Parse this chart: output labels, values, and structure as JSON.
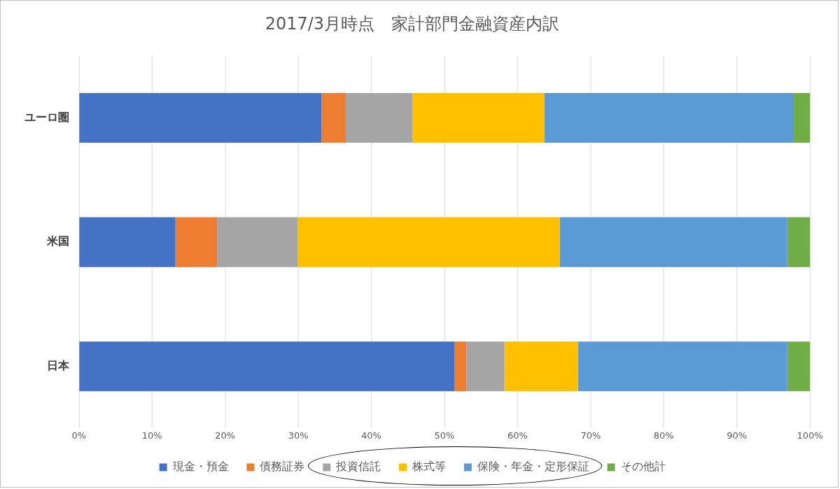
{
  "chart_data": {
    "type": "bar",
    "orientation": "horizontal",
    "stacked": true,
    "title": "2017/3月時点　家計部門金融資産内訳",
    "categories": [
      "ユーロ圏",
      "米国",
      "日本"
    ],
    "series": [
      {
        "name": "現金・預金",
        "color": "#4472c4",
        "values": [
          33.2,
          13.2,
          51.4
        ]
      },
      {
        "name": "債務証券",
        "color": "#ed7d31",
        "values": [
          3.3,
          5.7,
          1.6
        ]
      },
      {
        "name": "投資信託",
        "color": "#a5a5a5",
        "values": [
          9.1,
          11.0,
          5.2
        ]
      },
      {
        "name": "株式等",
        "color": "#ffc000",
        "values": [
          18.1,
          35.9,
          10.1
        ]
      },
      {
        "name": "保険・年金・定形保証",
        "color": "#5b9bd5",
        "values": [
          34.1,
          31.1,
          28.6
        ]
      },
      {
        "name": "その他計",
        "color": "#70ad47",
        "values": [
          2.2,
          3.1,
          3.1
        ]
      }
    ],
    "xlim": [
      0,
      100
    ],
    "xticks": [
      {
        "value": 0,
        "label": "0%"
      },
      {
        "value": 10,
        "label": "10%"
      },
      {
        "value": 20,
        "label": "20%"
      },
      {
        "value": 30,
        "label": "30%"
      },
      {
        "value": 40,
        "label": "40%"
      },
      {
        "value": 50,
        "label": "50%"
      },
      {
        "value": 60,
        "label": "60%"
      },
      {
        "value": 70,
        "label": "70%"
      },
      {
        "value": 80,
        "label": "80%"
      },
      {
        "value": 90,
        "label": "90%"
      },
      {
        "value": 100,
        "label": "100%"
      }
    ],
    "grid": "x",
    "legend": "bottom"
  }
}
